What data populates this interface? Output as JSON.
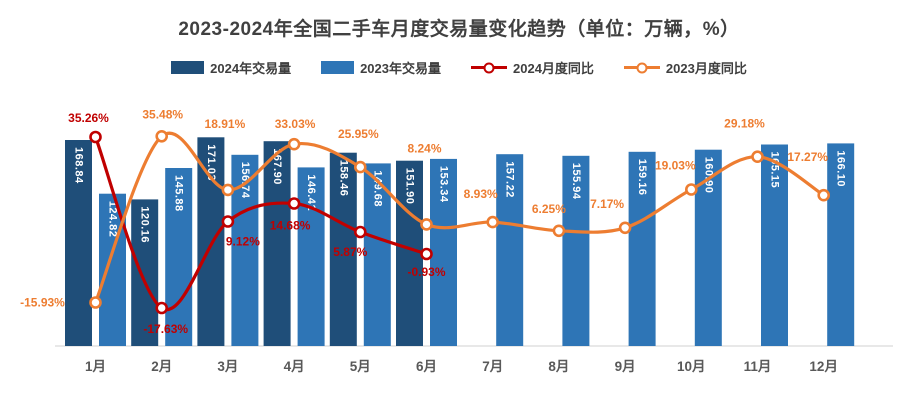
{
  "title": "2023-2024年全国二手车月度交易量变化趋势（单位：万辆，%）",
  "legend": [
    {
      "label": "2024年交易量",
      "type": "bar",
      "color": "#1F4E79"
    },
    {
      "label": "2023年交易量",
      "type": "bar",
      "color": "#2E75B6"
    },
    {
      "label": "2024月度同比",
      "type": "line",
      "color": "#C00000"
    },
    {
      "label": "2023月度同比",
      "type": "line",
      "color": "#ED7D31"
    }
  ],
  "colors": {
    "bar_2024": "#1F4E79",
    "bar_2023": "#2E75B6",
    "line_2024_yoy": "#C00000",
    "line_2023_yoy": "#ED7D31",
    "axis_line": "#D9D9D9",
    "title_text": "#404040",
    "axis_label_text": "#595959"
  },
  "chart_data": {
    "type": "bar",
    "subtype": "combo bar+line, dual implicit axes (volume in 万辆, YoY in %)",
    "title": "2023-2024年全国二手车月度交易量变化趋势（单位：万辆，%）",
    "categories": [
      "1月",
      "2月",
      "3月",
      "4月",
      "5月",
      "6月",
      "7月",
      "8月",
      "9月",
      "10月",
      "11月",
      "12月"
    ],
    "series": [
      {
        "name": "2024年交易量",
        "type": "bar",
        "color": "#1F4E79",
        "unit": "万辆",
        "values": [
          168.84,
          120.16,
          171.03,
          167.9,
          158.46,
          151.9,
          null,
          null,
          null,
          null,
          null,
          null
        ]
      },
      {
        "name": "2023年交易量",
        "type": "bar",
        "color": "#2E75B6",
        "unit": "万辆",
        "values": [
          124.82,
          145.88,
          156.74,
          146.41,
          149.68,
          153.34,
          157.22,
          155.94,
          159.16,
          160.9,
          165.15,
          166.1
        ]
      },
      {
        "name": "2024月度同比",
        "type": "line",
        "color": "#C00000",
        "unit": "%",
        "values": [
          35.26,
          -17.63,
          9.12,
          14.68,
          5.87,
          -0.93,
          null,
          null,
          null,
          null,
          null,
          null
        ]
      },
      {
        "name": "2023月度同比",
        "type": "line",
        "color": "#ED7D31",
        "unit": "%",
        "values": [
          -15.93,
          35.48,
          18.91,
          33.03,
          25.95,
          8.24,
          8.93,
          6.25,
          7.17,
          19.03,
          29.18,
          17.27
        ]
      }
    ],
    "xlabel": "",
    "ylabel": "",
    "bar_axis_min": 0,
    "grid": false,
    "legend_position": "top",
    "data_labels_shown": true,
    "line_style": "smooth with open circle markers"
  }
}
